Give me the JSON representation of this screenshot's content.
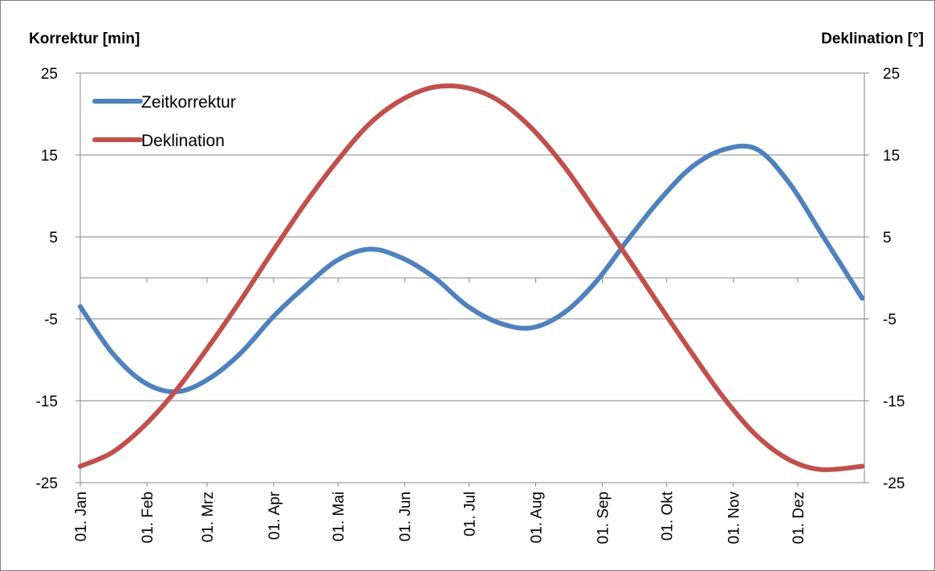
{
  "chart_data": {
    "type": "line",
    "y_left_label": "Korrektur [min]",
    "y_right_label": "Deklination [°]",
    "ylim": [
      -25,
      25
    ],
    "y_ticks": [
      25,
      15,
      5,
      -5,
      -15,
      -25
    ],
    "y_tick_labels": [
      "25",
      "15",
      "5",
      "-5",
      "-15",
      "-25"
    ],
    "x_range_days": [
      0,
      365
    ],
    "x_ticks": [
      "01. Jan",
      "01. Feb",
      "01. Mrz",
      "01. Apr",
      "01. Mai",
      "01. Jun",
      "01. Jul",
      "01. Aug",
      "01. Sep",
      "01. Okt",
      "01. Nov",
      "01. Dez"
    ],
    "x_tick_days": [
      0,
      31,
      59,
      90,
      120,
      151,
      181,
      212,
      243,
      273,
      304,
      334
    ],
    "grid": "horizontal",
    "legend_position": "top-left",
    "x": [
      0,
      15,
      30,
      45,
      60,
      75,
      90,
      105,
      120,
      135,
      150,
      165,
      180,
      195,
      210,
      225,
      240,
      255,
      270,
      285,
      300,
      315,
      330,
      345,
      364
    ],
    "series": [
      {
        "name": "Zeitkorrektur",
        "color": "#4f81bd",
        "values": [
          -3.5,
          -9.2,
          -12.8,
          -13.9,
          -12.3,
          -9.1,
          -4.7,
          -1.0,
          2.2,
          3.5,
          2.4,
          0.0,
          -3.4,
          -5.5,
          -6.1,
          -4.3,
          -0.5,
          4.7,
          9.6,
          13.6,
          15.7,
          15.7,
          11.6,
          5.4,
          -2.5
        ]
      },
      {
        "name": "Deklination",
        "color": "#c0504d",
        "values": [
          -23.0,
          -21.3,
          -18.0,
          -13.6,
          -8.3,
          -2.6,
          3.4,
          9.2,
          14.4,
          18.9,
          21.8,
          23.3,
          23.2,
          21.6,
          18.3,
          13.7,
          8.1,
          2.4,
          -3.5,
          -9.3,
          -14.8,
          -19.3,
          -22.2,
          -23.4,
          -23.0
        ]
      }
    ]
  }
}
